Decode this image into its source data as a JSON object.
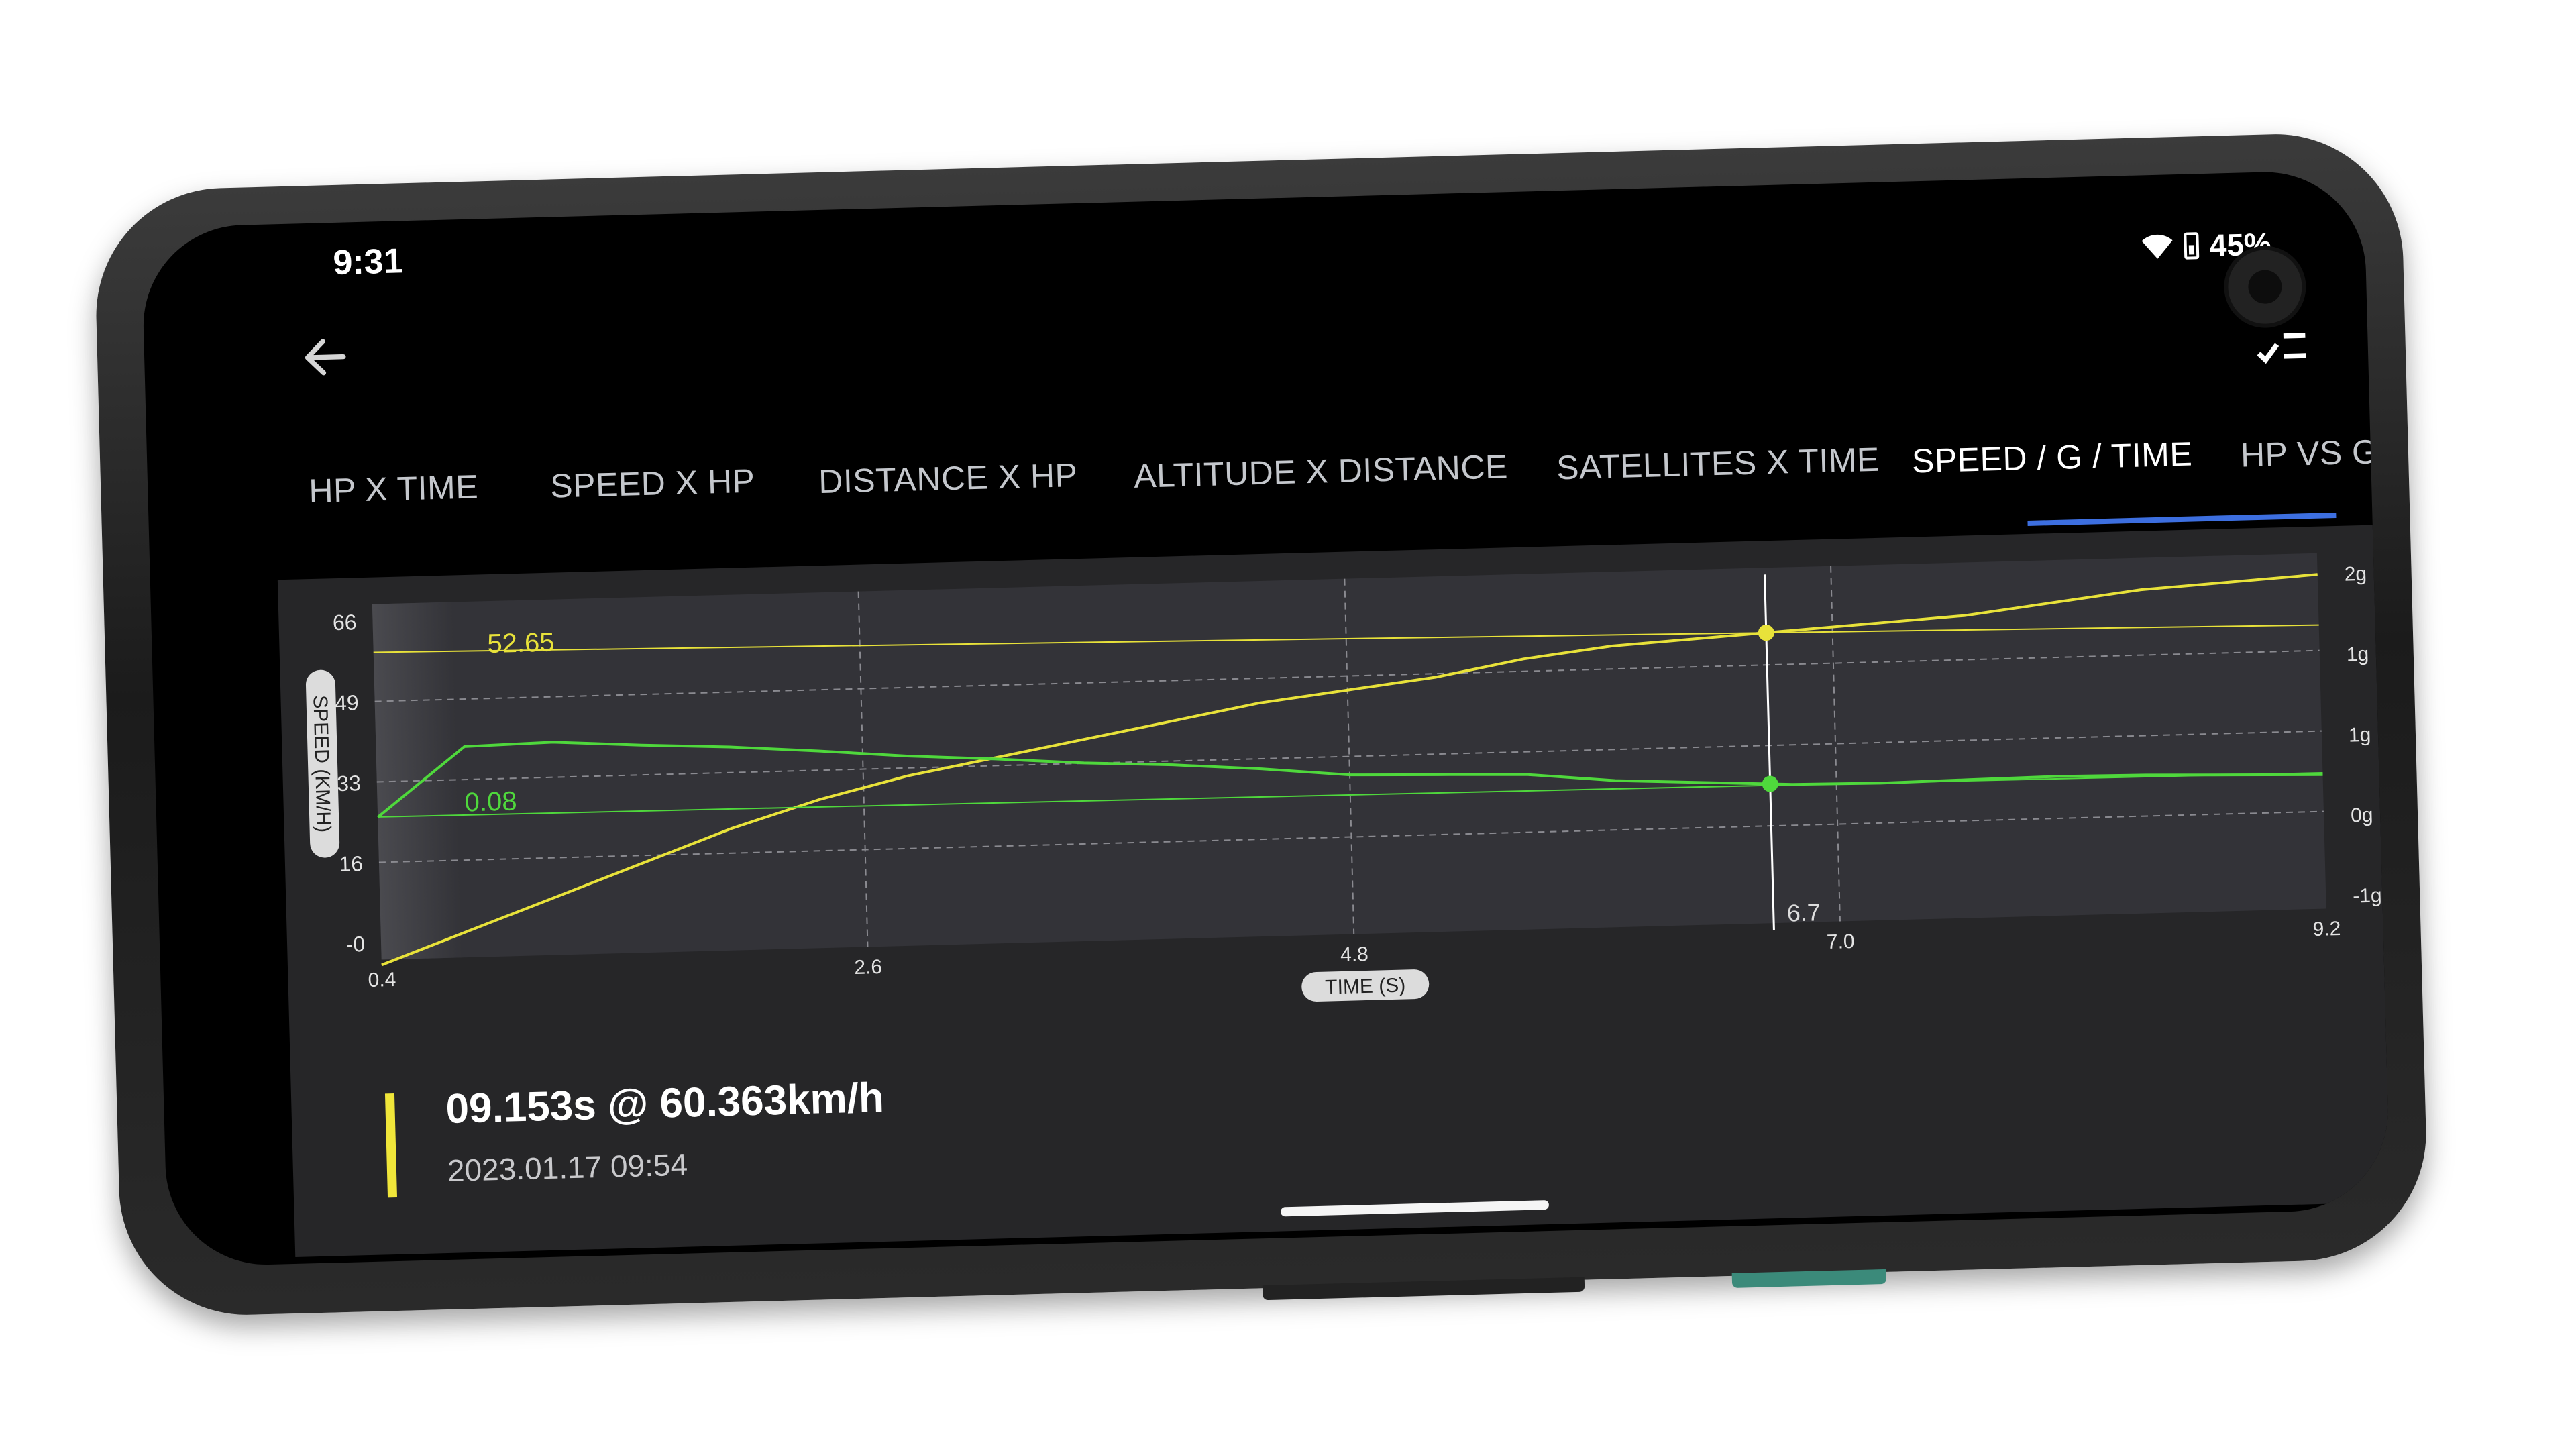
{
  "status_bar": {
    "time": "9:31",
    "battery": "45%"
  },
  "tabs": [
    {
      "label": "HP X TIME"
    },
    {
      "label": "SPEED X HP"
    },
    {
      "label": "DISTANCE X HP"
    },
    {
      "label": "ALTITUDE X DISTANCE"
    },
    {
      "label": "SATELLITES X TIME"
    },
    {
      "label": "SPEED / G / TIME",
      "active": true
    },
    {
      "label": "HP VS G"
    }
  ],
  "colors": {
    "accent": "#3d6fe0",
    "speed": "#e8e23a",
    "g_force": "#4fd83c",
    "panel": "#262628",
    "plot_bg": "#333338"
  },
  "summary": {
    "title": "09.153s @ 60.363km/h",
    "date": "2023.01.17 09:54"
  },
  "chart_data": {
    "type": "line",
    "x": [
      0.4,
      0.8,
      1.2,
      1.6,
      2.0,
      2.4,
      2.8,
      3.2,
      3.6,
      4.0,
      4.4,
      4.8,
      5.2,
      5.6,
      6.0,
      6.4,
      6.8,
      7.2,
      7.6,
      8.0,
      8.4,
      8.8,
      9.2
    ],
    "series": [
      {
        "axis": "left",
        "values": [
          -2,
          4,
          10,
          16,
          22,
          27,
          31,
          34,
          37,
          40,
          43,
          45,
          47,
          50,
          52,
          53,
          54,
          55,
          56,
          58,
          60,
          61,
          62
        ]
      },
      {
        "axis": "right",
        "values": [
          0.1,
          0.75,
          0.77,
          0.72,
          0.68,
          0.62,
          0.55,
          0.5,
          0.44,
          0.4,
          0.34,
          0.26,
          0.24,
          0.22,
          0.14,
          0.1,
          0.06,
          0.05,
          0.06,
          0.07,
          0.06,
          0.04,
          0.02
        ]
      }
    ],
    "ylabel": "SPEED (KM/H)",
    "xlabel": "TIME (S)",
    "x_ticks": [
      "0.4",
      "2.6",
      "4.8",
      "7.0",
      "9.2"
    ],
    "x_range": [
      0.4,
      9.2
    ],
    "y_left_ticks": [
      "-0",
      "16",
      "33",
      "49",
      "66"
    ],
    "y_left_range": [
      -1,
      66
    ],
    "y_right_ticks": [
      "2g",
      "1g",
      "1g",
      "0g",
      "-1g"
    ],
    "cursor": {
      "x": 6.7,
      "x_label": "6.7",
      "speed_label": "52.65",
      "g_label": "0.08"
    },
    "grid": true
  }
}
